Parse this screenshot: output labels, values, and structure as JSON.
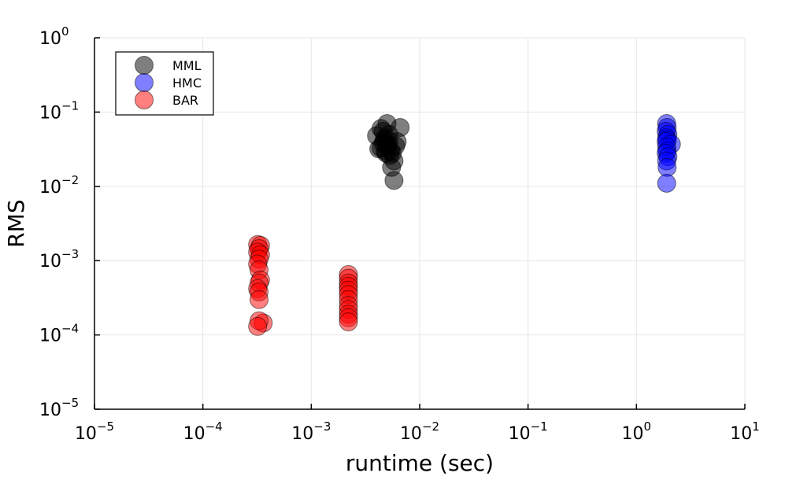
{
  "chart_data": {
    "type": "scatter",
    "title": "",
    "xlabel": "runtime (sec)",
    "ylabel": "RMS",
    "xscale": "log",
    "yscale": "log",
    "xlim": [
      1e-05,
      10
    ],
    "ylim": [
      1e-05,
      1
    ],
    "grid": true,
    "legend_position": "top-left",
    "x_ticks": [
      {
        "base": "10",
        "exp": "−5",
        "value": 1e-05
      },
      {
        "base": "10",
        "exp": "−4",
        "value": 0.0001
      },
      {
        "base": "10",
        "exp": "−3",
        "value": 0.001
      },
      {
        "base": "10",
        "exp": "−2",
        "value": 0.01
      },
      {
        "base": "10",
        "exp": "−1",
        "value": 0.1
      },
      {
        "base": "10",
        "exp": "0",
        "value": 1
      },
      {
        "base": "10",
        "exp": "1",
        "value": 10
      }
    ],
    "y_ticks": [
      {
        "base": "10",
        "exp": "−5",
        "value": 1e-05
      },
      {
        "base": "10",
        "exp": "−4",
        "value": 0.0001
      },
      {
        "base": "10",
        "exp": "−3",
        "value": 0.001
      },
      {
        "base": "10",
        "exp": "−2",
        "value": 0.01
      },
      {
        "base": "10",
        "exp": "−1",
        "value": 0.1
      },
      {
        "base": "10",
        "exp": "0",
        "value": 1
      }
    ],
    "series": [
      {
        "name": "MML",
        "color": "#000000",
        "points": [
          [
            0.004,
            0.048
          ],
          [
            0.0044,
            0.06
          ],
          [
            0.0046,
            0.055
          ],
          [
            0.005,
            0.07
          ],
          [
            0.0048,
            0.045
          ],
          [
            0.0052,
            0.04
          ],
          [
            0.0046,
            0.038
          ],
          [
            0.005,
            0.035
          ],
          [
            0.0054,
            0.03
          ],
          [
            0.0048,
            0.03
          ],
          [
            0.0044,
            0.033
          ],
          [
            0.0042,
            0.032
          ],
          [
            0.0056,
            0.028
          ],
          [
            0.0058,
            0.022
          ],
          [
            0.0055,
            0.018
          ],
          [
            0.006,
            0.035
          ],
          [
            0.0062,
            0.04
          ],
          [
            0.0066,
            0.062
          ],
          [
            0.0052,
            0.05
          ],
          [
            0.0047,
            0.042
          ],
          [
            0.0051,
            0.036
          ],
          [
            0.0053,
            0.026
          ],
          [
            0.0049,
            0.028
          ],
          [
            0.0058,
            0.012
          ]
        ]
      },
      {
        "name": "HMC",
        "color": "#0000ff",
        "points": [
          [
            1.9,
            0.07
          ],
          [
            1.92,
            0.062
          ],
          [
            1.88,
            0.055
          ],
          [
            1.95,
            0.05
          ],
          [
            1.9,
            0.045
          ],
          [
            1.93,
            0.042
          ],
          [
            1.88,
            0.04
          ],
          [
            2.1,
            0.037
          ],
          [
            1.9,
            0.034
          ],
          [
            1.92,
            0.03
          ],
          [
            1.88,
            0.028
          ],
          [
            1.95,
            0.025
          ],
          [
            1.9,
            0.022
          ],
          [
            1.92,
            0.018
          ],
          [
            1.9,
            0.011
          ]
        ]
      },
      {
        "name": "BAR",
        "color": "#ff0000",
        "points": [
          [
            0.00032,
            0.00165
          ],
          [
            0.00034,
            0.0016
          ],
          [
            0.00033,
            0.00145
          ],
          [
            0.00032,
            0.0013
          ],
          [
            0.00034,
            0.0012
          ],
          [
            0.00033,
            0.00105
          ],
          [
            0.00032,
            0.0009
          ],
          [
            0.00033,
            0.00075
          ],
          [
            0.00034,
            0.00055
          ],
          [
            0.00033,
            0.0005
          ],
          [
            0.00032,
            0.00042
          ],
          [
            0.00033,
            0.00038
          ],
          [
            0.00033,
            0.0003
          ],
          [
            0.00036,
            0.000145
          ],
          [
            0.00033,
            0.000155
          ],
          [
            0.00032,
            0.00013
          ],
          [
            0.0022,
            0.00065
          ],
          [
            0.0022,
            0.00058
          ],
          [
            0.0022,
            0.0005
          ],
          [
            0.0022,
            0.00045
          ],
          [
            0.0022,
            0.0004
          ],
          [
            0.0022,
            0.00035
          ],
          [
            0.0022,
            0.0003
          ],
          [
            0.0022,
            0.00025
          ],
          [
            0.0022,
            0.00022
          ],
          [
            0.0022,
            0.00019
          ],
          [
            0.0022,
            0.00017
          ],
          [
            0.0022,
            0.00015
          ]
        ]
      }
    ]
  }
}
